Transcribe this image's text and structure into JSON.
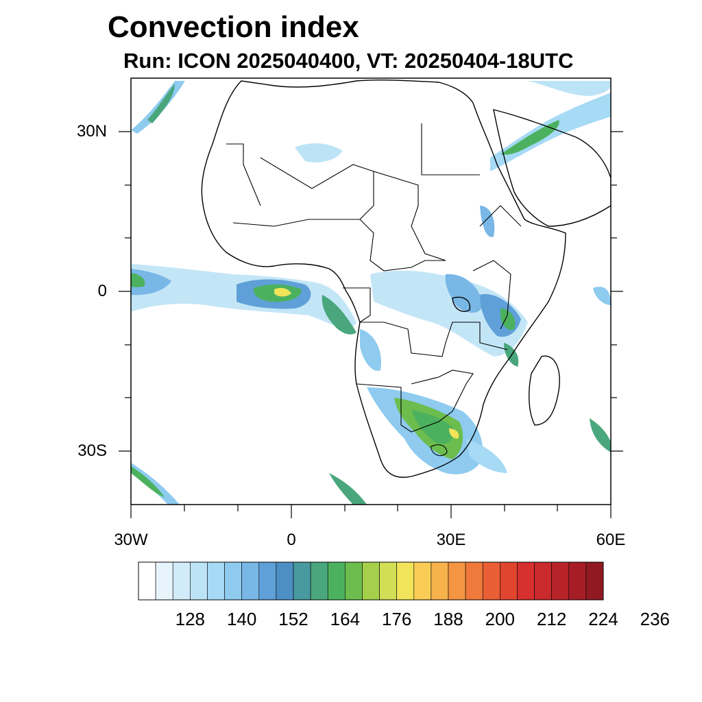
{
  "header": {
    "title": "Convection index",
    "subtitle": "Run: ICON 2025040400,  VT: 20250404-18UTC"
  },
  "map": {
    "projection": "lat-lon",
    "lon_range": [
      -30,
      60
    ],
    "lat_range": [
      -40,
      40
    ],
    "lat_labels": [
      {
        "lat": 30,
        "text": "30N"
      },
      {
        "lat": 0,
        "text": "0"
      },
      {
        "lat": -30,
        "text": "30S"
      }
    ],
    "lon_labels": [
      {
        "lon": -30,
        "text": "30W"
      },
      {
        "lon": 0,
        "text": "0"
      },
      {
        "lon": 30,
        "text": "30E"
      },
      {
        "lon": 60,
        "text": "60E"
      }
    ]
  },
  "colorbar": {
    "labels": [
      "128",
      "140",
      "152",
      "164",
      "176",
      "188",
      "200",
      "212",
      "224",
      "236"
    ],
    "colors": [
      "#ffffff",
      "#e8f4fc",
      "#d2ebf8",
      "#bde3f6",
      "#a6daf5",
      "#8ecbef",
      "#78b7e6",
      "#5fa0d8",
      "#4c8fc4",
      "#4899a0",
      "#4aa67c",
      "#4cb15f",
      "#6cbd4e",
      "#a6cf4c",
      "#d2de55",
      "#f1e45a",
      "#f9cd55",
      "#f7b24c",
      "#f49543",
      "#ef7a3c",
      "#e95e34",
      "#e04530",
      "#d6302f",
      "#c92a2c",
      "#b8232a",
      "#a61d26",
      "#911a22"
    ]
  }
}
